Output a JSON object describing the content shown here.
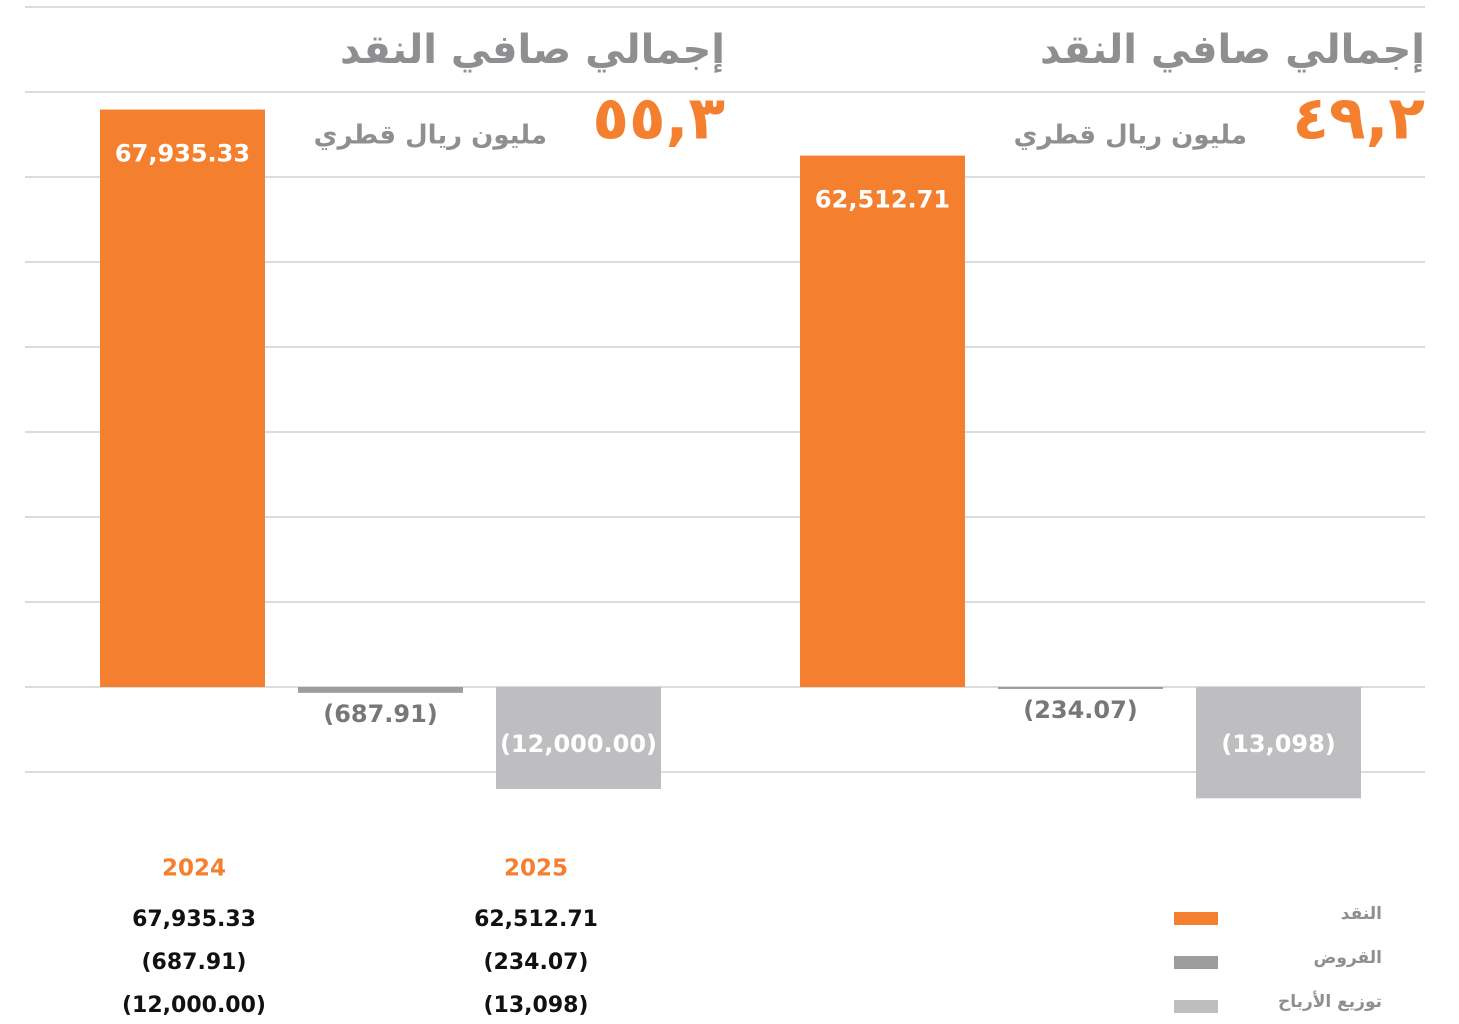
{
  "chart_data": {
    "type": "bar",
    "categories": [
      "2024",
      "2025"
    ],
    "series": [
      {
        "name": "النقد",
        "color": "#f4802f",
        "values": [
          67935.33,
          62512.71
        ],
        "value_labels": [
          "67,935.33",
          "62,512.71"
        ]
      },
      {
        "name": "القروض",
        "color": "#9d9d9f",
        "values": [
          -687.91,
          -234.07
        ],
        "value_labels": [
          "(687.91)",
          "(234.07)"
        ]
      },
      {
        "name": "توزيع الأرباح",
        "color": "#bebec0",
        "values": [
          -12000.0,
          -13098
        ],
        "value_labels": [
          "(12,000.00)",
          "(13,098)"
        ]
      }
    ],
    "annotations": [
      {
        "title": "إجمالي صافي النقد",
        "value": "٥٥,٣",
        "unit": "مليون ريال قطري"
      },
      {
        "title": "إجمالي صافي النقد",
        "value": "٤٩,٢",
        "unit": "مليون ريال قطري"
      }
    ],
    "ylim": [
      -15000,
      80000
    ],
    "yticks": [
      -10000,
      0,
      10000,
      20000,
      30000,
      40000,
      50000,
      60000,
      70000,
      80000
    ],
    "grid": true,
    "legend": "bottom-right"
  }
}
